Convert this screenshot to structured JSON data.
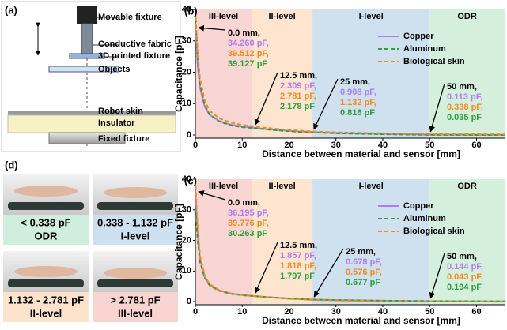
{
  "chart_data": [
    {
      "type": "line",
      "panel_label": "(b)",
      "ylabel": "Capacitance [pF]",
      "xlabel": "Distance between material and sensor [mm]",
      "xlim": [
        0,
        66
      ],
      "ylim": [
        -1,
        40
      ],
      "xticks": [
        0,
        10,
        20,
        30,
        40,
        50,
        60
      ],
      "yticks": [
        0,
        10,
        20,
        30,
        40
      ],
      "regions": [
        {
          "label": "III-level",
          "start": 0,
          "end": 12,
          "color": "#f9d6d3"
        },
        {
          "label": "II-level",
          "start": 12,
          "end": 25,
          "color": "#fde5cf"
        },
        {
          "label": "I-level",
          "start": 25,
          "end": 50,
          "color": "#cfe0ee"
        },
        {
          "label": "ODR",
          "start": 50,
          "end": 66,
          "color": "#d4efdc"
        }
      ],
      "x": [
        0,
        0.5,
        1,
        2,
        3,
        5,
        7.5,
        10,
        12.5,
        15,
        20,
        25,
        30,
        40,
        50,
        60,
        66
      ],
      "series": [
        {
          "name": "Copper",
          "color": "#b07cf0",
          "style": "solid",
          "values": [
            34.26,
            22,
            15,
            9,
            6.5,
            4.5,
            3.3,
            2.7,
            2.309,
            1.9,
            1.3,
            0.908,
            0.65,
            0.35,
            0.113,
            0.07,
            0.05
          ]
        },
        {
          "name": "Aluminum",
          "color": "#2e9e3a",
          "style": "dashed",
          "values": [
            39.127,
            25,
            16,
            9.5,
            6.6,
            4.4,
            3.1,
            2.5,
            2.178,
            1.8,
            1.2,
            0.816,
            0.55,
            0.25,
            0.035,
            0.02,
            0.01
          ]
        },
        {
          "name": "Biological skin",
          "color": "#f28a1e",
          "style": "dashed",
          "values": [
            39.512,
            26,
            18,
            11,
            7.8,
            5.4,
            4,
            3.2,
            2.781,
            2.3,
            1.6,
            1.132,
            0.85,
            0.55,
            0.338,
            0.25,
            0.2
          ]
        }
      ],
      "annotations": [
        {
          "lines": [
            "0.0 mm,",
            "34.260 pF,",
            "39.512 pF,",
            "39.127 pF"
          ],
          "line_colors": [
            "#000000",
            "#b07cf0",
            "#f28a1e",
            "#2e9e3a"
          ]
        },
        {
          "lines": [
            "12.5 mm,",
            "2.309 pF,",
            "2.781 pF,",
            "2.178 pF"
          ],
          "line_colors": [
            "#000000",
            "#b07cf0",
            "#f28a1e",
            "#2e9e3a"
          ]
        },
        {
          "lines": [
            "25 mm,",
            "0.908 pF,",
            "1.132 pF,",
            "0.816 pF"
          ],
          "line_colors": [
            "#000000",
            "#b07cf0",
            "#f28a1e",
            "#2e9e3a"
          ]
        },
        {
          "lines": [
            "50 mm,",
            "0.113 pF,",
            "0.338 pF,",
            "0.035 pF"
          ],
          "line_colors": [
            "#000000",
            "#b07cf0",
            "#f28a1e",
            "#2e9e3a"
          ]
        }
      ]
    },
    {
      "type": "line",
      "panel_label": "(c)",
      "ylabel": "Capacitance [pF]",
      "xlabel": "Distance between material and sensor [mm]",
      "xlim": [
        0,
        66
      ],
      "ylim": [
        -1,
        40
      ],
      "xticks": [
        0,
        10,
        20,
        30,
        40,
        50,
        60
      ],
      "yticks": [
        0,
        10,
        20,
        30,
        40
      ],
      "regions": [
        {
          "label": "III-level",
          "start": 0,
          "end": 12,
          "color": "#f9d6d3"
        },
        {
          "label": "II-level",
          "start": 12,
          "end": 25,
          "color": "#fde5cf"
        },
        {
          "label": "I-level",
          "start": 25,
          "end": 50,
          "color": "#cfe0ee"
        },
        {
          "label": "ODR",
          "start": 50,
          "end": 66,
          "color": "#d4efdc"
        }
      ],
      "x": [
        0,
        0.5,
        1,
        2,
        3,
        5,
        7.5,
        10,
        12.5,
        15,
        20,
        25,
        30,
        40,
        50,
        60,
        66
      ],
      "series": [
        {
          "name": "Copper",
          "color": "#b07cf0",
          "style": "solid",
          "values": [
            36.195,
            22,
            14,
            8,
            5.5,
            3.7,
            2.7,
            2.2,
            1.857,
            1.55,
            1.05,
            0.678,
            0.5,
            0.3,
            0.144,
            0.1,
            0.08
          ]
        },
        {
          "name": "Aluminum",
          "color": "#2e9e3a",
          "style": "dashed",
          "values": [
            30.263,
            20,
            13,
            7.8,
            5.4,
            3.6,
            2.6,
            2.1,
            1.797,
            1.5,
            1.0,
            0.677,
            0.52,
            0.33,
            0.194,
            0.15,
            0.12
          ]
        },
        {
          "name": "Biological skin",
          "color": "#f28a1e",
          "style": "dashed",
          "values": [
            39.776,
            24,
            15,
            8.5,
            5.8,
            3.8,
            2.7,
            2.15,
            1.818,
            1.5,
            0.95,
            0.576,
            0.38,
            0.15,
            0.043,
            0.02,
            0.01
          ]
        }
      ],
      "annotations": [
        {
          "lines": [
            "0.0 mm,",
            "36.195 pF,",
            "39.776 pF,",
            "30.263 pF"
          ],
          "line_colors": [
            "#000000",
            "#b07cf0",
            "#f28a1e",
            "#2e9e3a"
          ]
        },
        {
          "lines": [
            "12.5 mm,",
            "1.857 pF,",
            "1.818 pF,",
            "1.797 pF"
          ],
          "line_colors": [
            "#000000",
            "#b07cf0",
            "#f28a1e",
            "#2e9e3a"
          ]
        },
        {
          "lines": [
            "25 mm,",
            "0.678 pF,",
            "0.576 pF,",
            "0.677 pF"
          ],
          "line_colors": [
            "#000000",
            "#b07cf0",
            "#f28a1e",
            "#2e9e3a"
          ]
        },
        {
          "lines": [
            "50 mm,",
            "0.144 pF,",
            "0.043 pF,",
            "0.194 pF"
          ],
          "line_colors": [
            "#000000",
            "#b07cf0",
            "#f28a1e",
            "#2e9e3a"
          ]
        }
      ]
    }
  ],
  "panel_a": {
    "label": "(a)",
    "parts": [
      "Movable fixture",
      "Conductive fabric",
      "3D printed fixture",
      "Objects",
      "Robot skin",
      "Insulator",
      "Fixed fixture"
    ]
  },
  "panel_d": {
    "label": "(d)",
    "tiles": [
      {
        "range": "< 0.338 pF",
        "level": "ODR",
        "color": "#cfeedd"
      },
      {
        "range": "0.338 - 1.132 pF",
        "level": "I-level",
        "color": "#cde0f0"
      },
      {
        "range": "1.132 - 2.781 pF",
        "level": "II-level",
        "color": "#fde3cc"
      },
      {
        "range": "> 2.781 pF",
        "level": "III-level",
        "color": "#f8d3d0"
      }
    ]
  }
}
